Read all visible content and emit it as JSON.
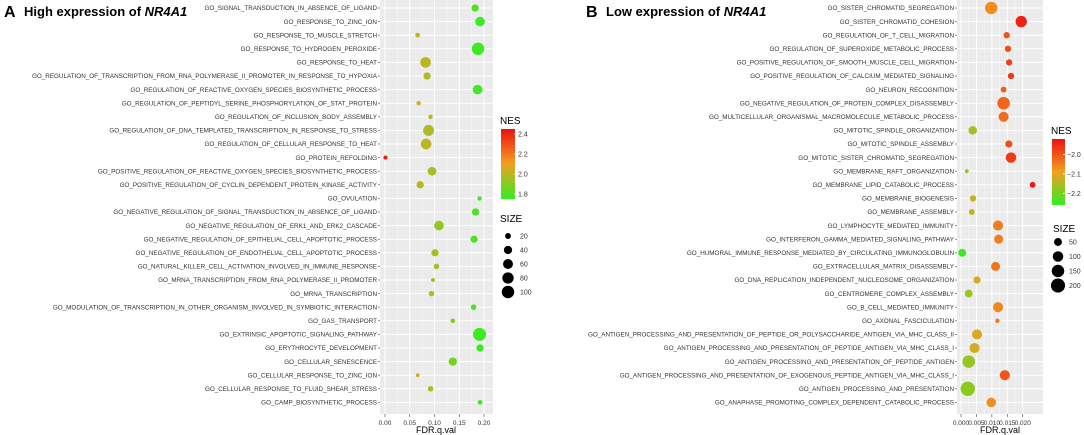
{
  "panel_a": {
    "letter": "A",
    "title_prefix": "High expression of ",
    "title_gene": "NR4A1"
  },
  "panel_b": {
    "letter": "B",
    "title_prefix": "Low expression of ",
    "title_gene": "NR4A1"
  },
  "chart_data": [
    {
      "type": "scatter",
      "title": "High expression of NR4A1",
      "xlabel": "FDR.q.val",
      "ylabel": "",
      "xlim": [
        0.0,
        0.2
      ],
      "xticks": [
        0.0,
        0.05,
        0.1,
        0.15,
        0.2
      ],
      "xtick_labels": [
        "0.00",
        "0.05",
        "0.10",
        "0.15",
        "0.20"
      ],
      "grid": true,
      "color_legend": {
        "title": "NES",
        "min": 1.75,
        "max": 2.45,
        "ticks": [
          2.4,
          2.2,
          2.0,
          1.8
        ],
        "tick_labels": [
          "2.4",
          "2.2",
          "2.0",
          "1.8"
        ],
        "low_color": "#33ee22",
        "high_color": "#ee1111"
      },
      "size_legend": {
        "title": "SIZE",
        "values": [
          20,
          40,
          60,
          80,
          100
        ],
        "labels": [
          "20",
          "40",
          "60",
          "80",
          "100"
        ],
        "min": 10,
        "max": 110
      },
      "points": [
        {
          "term": "GO_SIGNAL_TRANSDUCTION_IN_ABSENCE_OF_LIGAND",
          "fdr": 0.182,
          "nes": 1.8,
          "size": 30
        },
        {
          "term": "GO_RESPONSE_TO_ZINC_ION",
          "fdr": 0.192,
          "nes": 1.76,
          "size": 55
        },
        {
          "term": "GO_RESPONSE_TO_MUSCLE_STRETCH",
          "fdr": 0.066,
          "nes": 2.02,
          "size": 14
        },
        {
          "term": "GO_RESPONSE_TO_HYDROGEN_PEROXIDE",
          "fdr": 0.188,
          "nes": 1.77,
          "size": 100
        },
        {
          "term": "GO_RESPONSE_TO_HEAT",
          "fdr": 0.082,
          "nes": 2.0,
          "size": 70
        },
        {
          "term": "GO_REGULATION_OF_TRANSCRIPTION_FROM_RNA_POLYMERASE_II_PROMOTER_IN_RESPONSE_TO_HYPOXIA",
          "fdr": 0.085,
          "nes": 1.98,
          "size": 30
        },
        {
          "term": "GO_REGULATION_OF_REACTIVE_OXYGEN_SPECIES_BIOSYNTHETIC_PROCESS",
          "fdr": 0.187,
          "nes": 1.78,
          "size": 55
        },
        {
          "term": "GO_REGULATION_OF_PEPTIDYL_SERINE_PHOSPHORYLATION_OF_STAT_PROTEIN",
          "fdr": 0.068,
          "nes": 2.02,
          "size": 13
        },
        {
          "term": "GO_REGULATION_OF_INCLUSION_BODY_ASSEMBLY",
          "fdr": 0.092,
          "nes": 1.98,
          "size": 13
        },
        {
          "term": "GO_REGULATION_OF_DNA_TEMPLATED_TRANSCRIPTION_IN_RESPONSE_TO_STRESS",
          "fdr": 0.088,
          "nes": 1.98,
          "size": 75
        },
        {
          "term": "GO_REGULATION_OF_CELLULAR_RESPONSE_TO_HEAT",
          "fdr": 0.083,
          "nes": 2.0,
          "size": 70
        },
        {
          "term": "GO_PROTEIN_REFOLDING",
          "fdr": 0.001,
          "nes": 2.42,
          "size": 12
        },
        {
          "term": "GO_POSITIVE_REGULATION_OF_REACTIVE_OXYGEN_SPECIES_BIOSYNTHETIC_PROCESS",
          "fdr": 0.095,
          "nes": 1.97,
          "size": 45
        },
        {
          "term": "GO_POSITIVE_REGULATION_OF_CYCLIN_DEPENDENT_PROTEIN_KINASE_ACTIVITY",
          "fdr": 0.071,
          "nes": 2.0,
          "size": 30
        },
        {
          "term": "GO_OVULATION",
          "fdr": 0.191,
          "nes": 1.77,
          "size": 13
        },
        {
          "term": "GO_NEGATIVE_REGULATION_OF_SIGNAL_TRANSDUCTION_IN_ABSENCE_OF_LIGAND",
          "fdr": 0.183,
          "nes": 1.79,
          "size": 30
        },
        {
          "term": "GO_NEGATIVE_REGULATION_OF_ERK1_AND_ERK2_CASCADE",
          "fdr": 0.109,
          "nes": 1.93,
          "size": 55
        },
        {
          "term": "GO_NEGATIVE_REGULATION_OF_EPITHELIAL_CELL_APOPTOTIC_PROCESS",
          "fdr": 0.18,
          "nes": 1.8,
          "size": 30
        },
        {
          "term": "GO_NEGATIVE_REGULATION_OF_ENDOTHELIAL_CELL_APOPTOTIC_PROCESS",
          "fdr": 0.101,
          "nes": 1.95,
          "size": 30
        },
        {
          "term": "GO_NATURAL_KILLER_CELL_ACTIVATION_INVOLVED_IN_IMMUNE_RESPONSE",
          "fdr": 0.104,
          "nes": 1.95,
          "size": 18
        },
        {
          "term": "GO_MRNA_TRANSCRIPTION_FROM_RNA_POLYMERASE_II_PROMOTER",
          "fdr": 0.097,
          "nes": 1.97,
          "size": 12
        },
        {
          "term": "GO_MRNA_TRANSCRIPTION",
          "fdr": 0.094,
          "nes": 1.97,
          "size": 18
        },
        {
          "term": "GO_MODULATION_OF_TRANSCRIPTION_IN_OTHER_ORGANISM_INVOLVED_IN_SYMBIOTIC_INTERACTION",
          "fdr": 0.179,
          "nes": 1.8,
          "size": 18
        },
        {
          "term": "GO_GAS_TRANSPORT",
          "fdr": 0.137,
          "nes": 1.88,
          "size": 14
        },
        {
          "term": "GO_EXTRINSIC_APOPTOTIC_SIGNALING_PATHWAY",
          "fdr": 0.191,
          "nes": 1.77,
          "size": 110
        },
        {
          "term": "GO_ERYTHROCYTE_DEVELOPMENT",
          "fdr": 0.192,
          "nes": 1.76,
          "size": 30
        },
        {
          "term": "GO_CELLULAR_SENESCENCE",
          "fdr": 0.137,
          "nes": 1.87,
          "size": 40
        },
        {
          "term": "GO_CELLULAR_RESPONSE_TO_ZINC_ION",
          "fdr": 0.066,
          "nes": 2.03,
          "size": 11
        },
        {
          "term": "GO_CELLULAR_RESPONSE_TO_FLUID_SHEAR_STRESS",
          "fdr": 0.092,
          "nes": 1.98,
          "size": 18
        },
        {
          "term": "GO_CAMP_BIOSYNTHETIC_PROCESS",
          "fdr": 0.192,
          "nes": 1.76,
          "size": 14
        }
      ]
    },
    {
      "type": "scatter",
      "title": "Low expression of NR4A1",
      "xlabel": "FDR.q.val",
      "ylabel": "",
      "xlim": [
        0.0,
        0.023
      ],
      "xticks": [
        0.0,
        0.005,
        0.01,
        0.015,
        0.02
      ],
      "xtick_labels": [
        "0.000",
        "0.005",
        "0.010",
        "0.015",
        "0.020"
      ],
      "grid": true,
      "color_legend": {
        "title": "NES",
        "min": -2.26,
        "max": -1.92,
        "ticks": [
          -2.0,
          -2.1,
          -2.2
        ],
        "tick_labels": [
          "−2.0",
          "−2.1",
          "−2.2"
        ],
        "low_color": "#33ee22",
        "high_color": "#ee1111"
      },
      "size_legend": {
        "title": "SIZE",
        "values": [
          50,
          100,
          150,
          200
        ],
        "labels": [
          "50",
          "100",
          "150",
          "200"
        ],
        "min": 10,
        "max": 230
      },
      "points": [
        {
          "term": "GO_SISTER_CHROMATID_SEGREGATION",
          "fdr": 0.0098,
          "nes": -2.07,
          "size": 150
        },
        {
          "term": "GO_SISTER_CHROMATID_COHESION",
          "fdr": 0.0195,
          "nes": -1.94,
          "size": 120
        },
        {
          "term": "GO_REGULATION_OF_T_CELL_MIGRATION",
          "fdr": 0.0148,
          "nes": -2.0,
          "size": 30
        },
        {
          "term": "GO_REGULATION_OF_SUPEROXIDE_METABOLIC_PROCESS",
          "fdr": 0.0152,
          "nes": -1.99,
          "size": 30
        },
        {
          "term": "GO_POSITIVE_REGULATION_OF_SMOOTH_MUSCLE_CELL_MIGRATION",
          "fdr": 0.0156,
          "nes": -1.98,
          "size": 30
        },
        {
          "term": "GO_POSITIVE_REGULATION_OF_CALCIUM_MEDIATED_SIGNALING",
          "fdr": 0.0162,
          "nes": -1.97,
          "size": 30
        },
        {
          "term": "GO_NEURON_RECOGNITION",
          "fdr": 0.0138,
          "nes": -2.01,
          "size": 25
        },
        {
          "term": "GO_NEGATIVE_REGULATION_OF_PROTEIN_COMPLEX_DISASSEMBLY",
          "fdr": 0.0138,
          "nes": -2.02,
          "size": 150
        },
        {
          "term": "GO_MULTICELLULAR_ORGANISMAL_MACROMOLECULE_METABOLIC_PROCESS",
          "fdr": 0.0138,
          "nes": -2.03,
          "size": 90
        },
        {
          "term": "GO_MITOTIC_SPINDLE_ORGANIZATION",
          "fdr": 0.0038,
          "nes": -2.16,
          "size": 60
        },
        {
          "term": "GO_MITOTIC_SPINDLE_ASSEMBLY",
          "fdr": 0.0155,
          "nes": -1.99,
          "size": 40
        },
        {
          "term": "GO_MITOTIC_SISTER_CHROMATID_SEGREGATION",
          "fdr": 0.0162,
          "nes": -1.97,
          "size": 100
        },
        {
          "term": "GO_MEMBRANE_RAFT_ORGANIZATION",
          "fdr": 0.0019,
          "nes": -2.18,
          "size": 12
        },
        {
          "term": "GO_MEMBRANE_LIPID_CATABOLIC_PROCESS",
          "fdr": 0.0232,
          "nes": -1.93,
          "size": 25
        },
        {
          "term": "GO_MEMBRANE_BIOGENESIS",
          "fdr": 0.0039,
          "nes": -2.13,
          "size": 30
        },
        {
          "term": "GO_MEMBRANE_ASSEMBLY",
          "fdr": 0.0035,
          "nes": -2.14,
          "size": 25
        },
        {
          "term": "GO_LYMPHOCYTE_MEDIATED_IMMUNITY",
          "fdr": 0.012,
          "nes": -2.05,
          "size": 90
        },
        {
          "term": "GO_INTERFERON_GAMMA_MEDIATED_SIGNALING_PATHWAY",
          "fdr": 0.0122,
          "nes": -2.05,
          "size": 70
        },
        {
          "term": "GO_HUMORAL_IMMUNE_RESPONSE_MEDIATED_BY_CIRCULATING_IMMUNOGLOBULIN",
          "fdr": 0.0004,
          "nes": -2.25,
          "size": 50
        },
        {
          "term": "GO_EXTRACELLULAR_MATRIX_DISASSEMBLY",
          "fdr": 0.0112,
          "nes": -2.04,
          "size": 70
        },
        {
          "term": "GO_DNA_REPLICATION_INDEPENDENT_NUCLEOSOME_ORGANIZATION",
          "fdr": 0.0052,
          "nes": -2.12,
          "size": 40
        },
        {
          "term": "GO_CENTROMERE_COMPLEX_ASSEMBLY",
          "fdr": 0.0025,
          "nes": -2.17,
          "size": 50
        },
        {
          "term": "GO_B_CELL_MEDIATED_IMMUNITY",
          "fdr": 0.012,
          "nes": -2.06,
          "size": 90
        },
        {
          "term": "GO_AXONAL_FASCICULATION",
          "fdr": 0.0118,
          "nes": -2.04,
          "size": 14
        },
        {
          "term": "GO_ANTIGEN_PROCESSING_AND_PRESENTATION_OF_PEPTIDE_OR_POLYSACCHARIDE_ANTIGEN_VIA_MHC_CLASS_II",
          "fdr": 0.0052,
          "nes": -2.11,
          "size": 90
        },
        {
          "term": "GO_ANTIGEN_PROCESSING_AND_PRESENTATION_OF_PEPTIDE_ANTIGEN_VIA_MHC_CLASS_I",
          "fdr": 0.0044,
          "nes": -2.12,
          "size": 90
        },
        {
          "term": "GO_ANTIGEN_PROCESSING_AND_PRESENTATION_OF_PEPTIDE_ANTIGEN",
          "fdr": 0.0025,
          "nes": -2.17,
          "size": 150
        },
        {
          "term": "GO_ANTIGEN_PROCESSING_AND_PRESENTATION_OF_EXOGENOUS_PEPTIDE_ANTIGEN_VIA_MHC_CLASS_I",
          "fdr": 0.0142,
          "nes": -2.0,
          "size": 90
        },
        {
          "term": "GO_ANTIGEN_PROCESSING_AND_PRESENTATION",
          "fdr": 0.0022,
          "nes": -2.18,
          "size": 210
        },
        {
          "term": "GO_ANAPHASE_PROMOTING_COMPLEX_DEPENDENT_CATABOLIC_PROCESS",
          "fdr": 0.0098,
          "nes": -2.07,
          "size": 80
        }
      ]
    }
  ]
}
